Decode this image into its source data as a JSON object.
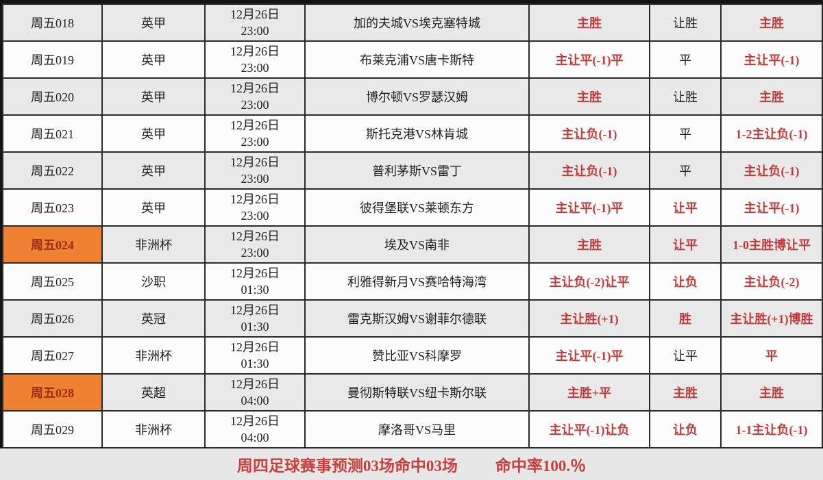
{
  "colors": {
    "red_text": "#c23b3b",
    "orange_highlight": "#ee8132",
    "highlight_text": "#9b2c0e",
    "alt_row_bg": "#e9e9e9",
    "row_bg": "#fcfcfc",
    "border": "#2a2a2a",
    "footer_bg": "#e7e7e7"
  },
  "table": {
    "columns": [
      "match_id",
      "league",
      "date",
      "time",
      "match",
      "prediction",
      "outcome",
      "result"
    ],
    "rows": [
      {
        "id": "周五018",
        "league": "英甲",
        "date": "12月26日",
        "time": "23:00",
        "match": "加的夫城VS埃克塞特城",
        "prediction": "主胜",
        "outcome": "让胜",
        "outcome_red": false,
        "result": "主胜",
        "highlight": false
      },
      {
        "id": "周五019",
        "league": "英甲",
        "date": "12月26日",
        "time": "23:00",
        "match": "布莱克浦VS唐卡斯特",
        "prediction": "主让平(-1)平",
        "outcome": "平",
        "outcome_red": false,
        "result": "主让平(-1)",
        "highlight": false
      },
      {
        "id": "周五020",
        "league": "英甲",
        "date": "12月26日",
        "time": "23:00",
        "match": "博尔顿VS罗瑟汉姆",
        "prediction": "主胜",
        "outcome": "让胜",
        "outcome_red": false,
        "result": "主胜",
        "highlight": false
      },
      {
        "id": "周五021",
        "league": "英甲",
        "date": "12月26日",
        "time": "23:00",
        "match": "斯托克港VS林肯城",
        "prediction": "主让负(-1)",
        "outcome": "平",
        "outcome_red": false,
        "result": "1-2主让负(-1)",
        "highlight": false
      },
      {
        "id": "周五022",
        "league": "英甲",
        "date": "12月26日",
        "time": "23:00",
        "match": "普利茅斯VS雷丁",
        "prediction": "主让负(-1)",
        "outcome": "平",
        "outcome_red": false,
        "result": "主让负(-1)",
        "highlight": false
      },
      {
        "id": "周五023",
        "league": "英甲",
        "date": "12月26日",
        "time": "23:00",
        "match": "彼得堡联VS莱顿东方",
        "prediction": "主让平(-1)平",
        "outcome": "让平",
        "outcome_red": true,
        "result": "主让平(-1)",
        "highlight": false
      },
      {
        "id": "周五024",
        "league": "非洲杯",
        "date": "12月26日",
        "time": "23:00",
        "match": "埃及VS南非",
        "prediction": "主胜",
        "outcome": "让平",
        "outcome_red": true,
        "result": "1-0主胜博让平",
        "highlight": true
      },
      {
        "id": "周五025",
        "league": "沙职",
        "date": "12月26日",
        "time": "01:30",
        "match": "利雅得新月VS赛哈特海湾",
        "prediction": "主让负(-2)让平",
        "outcome": "让负",
        "outcome_red": true,
        "result": "主让负(-2)",
        "highlight": false
      },
      {
        "id": "周五026",
        "league": "英冠",
        "date": "12月26日",
        "time": "01:30",
        "match": "雷克斯汉姆VS谢菲尔德联",
        "prediction": "主让胜(+1)",
        "outcome": "胜",
        "outcome_red": true,
        "result": "主让胜(+1)博胜",
        "highlight": false
      },
      {
        "id": "周五027",
        "league": "非洲杯",
        "date": "12月26日",
        "time": "01:30",
        "match": "赞比亚VS科摩罗",
        "prediction": "主让平(-1)平",
        "outcome": "让平",
        "outcome_red": false,
        "result": "平",
        "highlight": false
      },
      {
        "id": "周五028",
        "league": "英超",
        "date": "12月26日",
        "time": "04:00",
        "match": "曼彻斯特联VS纽卡斯尔联",
        "prediction": "主胜+平",
        "outcome": "主胜",
        "outcome_red": true,
        "result": "主胜",
        "highlight": true
      },
      {
        "id": "周五029",
        "league": "非洲杯",
        "date": "12月26日",
        "time": "04:00",
        "match": "摩洛哥VS马里",
        "prediction": "主让平(-1)让负",
        "outcome": "让负",
        "outcome_red": true,
        "result": "1-1主让负(-1)",
        "highlight": false
      }
    ]
  },
  "footer": {
    "summary": "周四足球赛事预测03场命中03场",
    "hit_rate": "命中率100.％"
  }
}
